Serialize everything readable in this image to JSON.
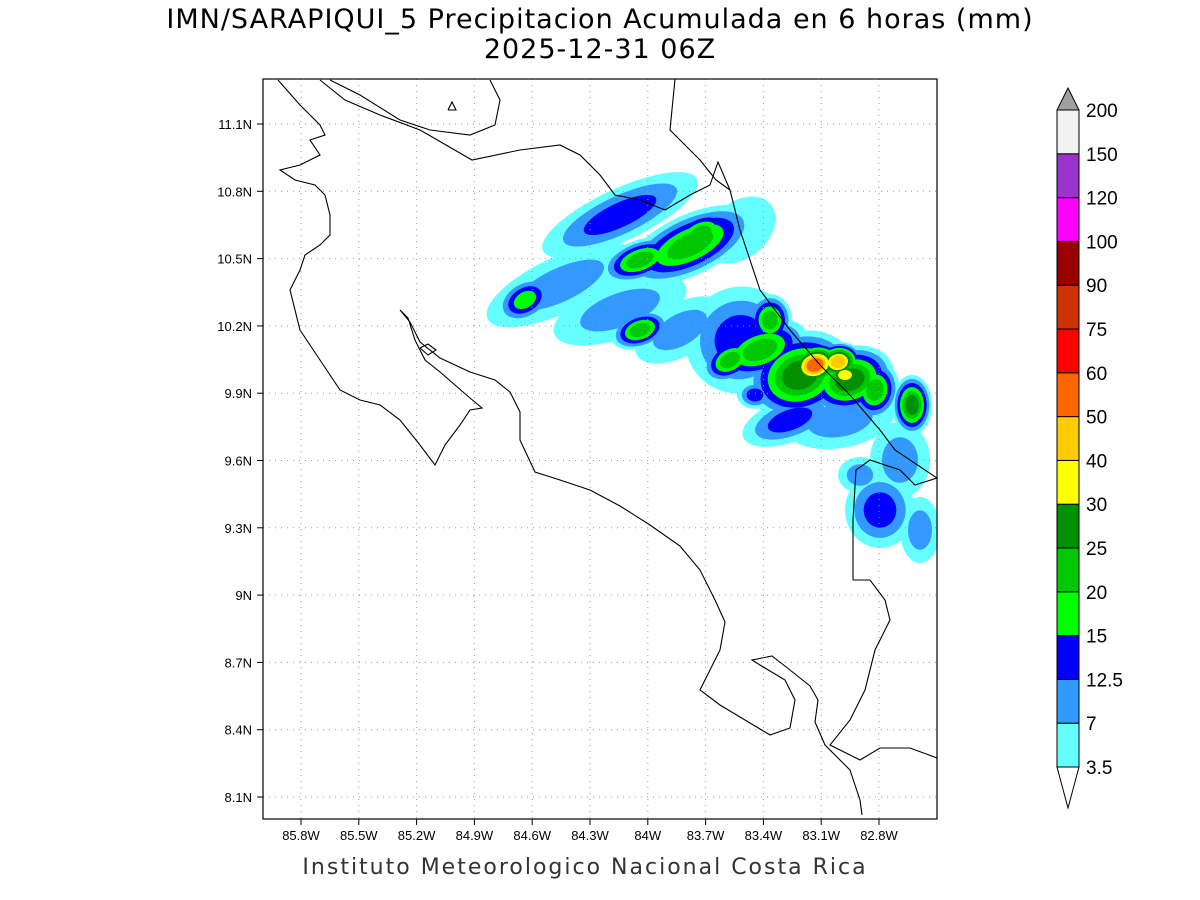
{
  "title": "IMN/SARAPIQUI_5 Precipitacion Acumulada en 6 horas (mm)",
  "subtitle": "2025-12-31 06Z",
  "footer": "Instituto Meteorologico Nacional Costa Rica",
  "map": {
    "lon_ticks": [
      "85.8W",
      "85.5W",
      "85.2W",
      "84.9W",
      "84.6W",
      "84.3W",
      "84W",
      "83.7W",
      "83.4W",
      "83.1W",
      "82.8W"
    ],
    "lat_ticks": [
      "11.1N",
      "10.8N",
      "10.5N",
      "10.2N",
      "9.9N",
      "9.6N",
      "9.3N",
      "9N",
      "8.7N",
      "8.4N",
      "8.1N"
    ],
    "grid": true
  },
  "colorbar": {
    "labels": [
      "3.5",
      "7",
      "12.5",
      "15",
      "20",
      "25",
      "30",
      "40",
      "50",
      "60",
      "75",
      "90",
      "100",
      "120",
      "150",
      "200"
    ],
    "colors": [
      "#66ffff",
      "#3399ff",
      "#0000ff",
      "#00ff00",
      "#00c800",
      "#009000",
      "#ffff00",
      "#ffcc00",
      "#ff6600",
      "#ff0000",
      "#cc3300",
      "#990000",
      "#ff00ff",
      "#9933cc",
      "#f2f2f2"
    ],
    "over_color": "#a0a0a0",
    "under_color": "#ffffff"
  }
}
